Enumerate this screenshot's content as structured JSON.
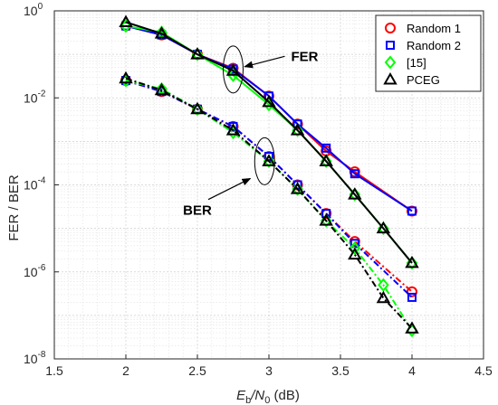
{
  "chart_data": {
    "type": "line",
    "title": "",
    "xlabel_main": "E",
    "xlabel_sub1": "b",
    "xlabel_mid": "/N",
    "xlabel_sub2": "0",
    "xlabel_end": " (dB)",
    "ylabel": "FER / BER",
    "y_scale": "log",
    "xlim": [
      1.5,
      4.5
    ],
    "ylim": [
      1e-08,
      1
    ],
    "grid": true,
    "legend_position": "top-right",
    "x_ticks": [
      {
        "value": 1.5,
        "label": "1.5"
      },
      {
        "value": 2,
        "label": "2"
      },
      {
        "value": 2.5,
        "label": "2.5"
      },
      {
        "value": 3,
        "label": "3"
      },
      {
        "value": 3.5,
        "label": "3.5"
      },
      {
        "value": 4,
        "label": "4"
      },
      {
        "value": 4.5,
        "label": "4.5"
      }
    ],
    "y_ticks": [
      {
        "exp": 0,
        "base": "10",
        "sup": "0"
      },
      {
        "exp": -2,
        "base": "10",
        "sup": "-2"
      },
      {
        "exp": -4,
        "base": "10",
        "sup": "-4"
      },
      {
        "exp": -6,
        "base": "10",
        "sup": "-6"
      },
      {
        "exp": -8,
        "base": "10",
        "sup": "-8"
      }
    ],
    "x": [
      2.0,
      2.25,
      2.5,
      2.75,
      3.0,
      3.2,
      3.4,
      3.6,
      3.8,
      4.0
    ],
    "series": [
      {
        "name": "Random 1",
        "color": "#ff0000",
        "marker": "circle",
        "fer": [
          0.45,
          0.28,
          0.1,
          0.048,
          0.011,
          0.0025,
          0.0006,
          0.0002,
          null,
          2.5e-05
        ],
        "ber": [
          0.025,
          0.014,
          0.0055,
          0.0022,
          0.00045,
          0.0001,
          2.2e-05,
          5e-06,
          null,
          3.5e-07
        ]
      },
      {
        "name": "Random 2",
        "color": "#0000ff",
        "marker": "square",
        "fer": [
          0.45,
          0.28,
          0.1,
          0.046,
          0.011,
          0.0025,
          0.0007,
          0.00018,
          null,
          2.5e-05
        ],
        "ber": [
          0.025,
          0.014,
          0.0055,
          0.0022,
          0.00045,
          0.0001,
          2.2e-05,
          4.5e-06,
          null,
          2.6e-07
        ]
      },
      {
        "name": "[15]",
        "color": "#00ff00",
        "marker": "diamond",
        "fer": [
          0.45,
          0.32,
          0.1,
          0.033,
          0.007,
          0.0018,
          0.00035,
          6e-05,
          1e-05,
          1.6e-06
        ],
        "ber": [
          0.025,
          0.016,
          0.0055,
          0.0016,
          0.00035,
          8e-05,
          1.5e-05,
          3.5e-06,
          5e-07,
          4.5e-08
        ]
      },
      {
        "name": "PCEG",
        "color": "#000000",
        "marker": "triangle",
        "fer": [
          0.55,
          0.3,
          0.1,
          0.042,
          0.008,
          0.0018,
          0.00035,
          6e-05,
          1e-05,
          1.6e-06
        ],
        "ber": [
          0.028,
          0.015,
          0.0055,
          0.0018,
          0.00035,
          8e-05,
          1.5e-05,
          2.5e-06,
          2.5e-07,
          5e-08
        ]
      }
    ],
    "annotations": [
      {
        "text": "FER",
        "ellipse_x": 2.75,
        "ellipse_y": 0.045,
        "arrow_to": [
          2.83,
          0.052
        ],
        "text_at": [
          3.25,
          0.09
        ]
      },
      {
        "text": "BER",
        "ellipse_x": 2.97,
        "ellipse_y": 0.00035,
        "arrow_to": [
          2.87,
          0.00014
        ],
        "text_at": [
          2.5,
          2.6e-05
        ]
      }
    ]
  }
}
